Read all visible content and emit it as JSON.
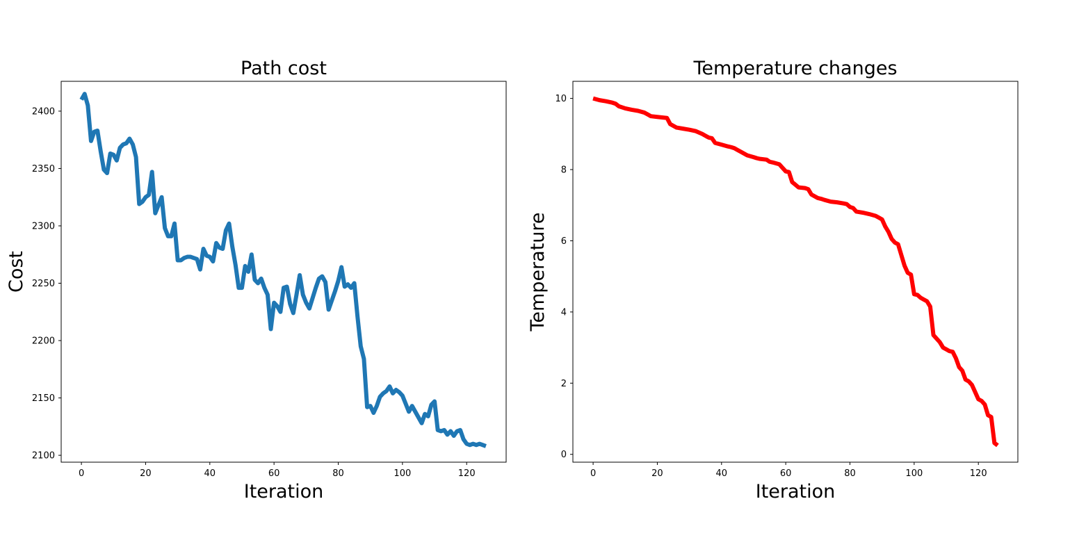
{
  "chart_data": [
    {
      "type": "line",
      "title": "Path cost",
      "xlabel": "Iteration",
      "ylabel": "Cost",
      "xlim": [
        -6.3,
        132.3
      ],
      "ylim": [
        2094,
        2426
      ],
      "xticks": [
        "0",
        "20",
        "40",
        "60",
        "80",
        "100",
        "120"
      ],
      "yticks": [
        "2100",
        "2150",
        "2200",
        "2250",
        "2300",
        "2350",
        "2400"
      ],
      "color": "#1f77b4",
      "series": [
        {
          "x": [
            0,
            1,
            2,
            3,
            4,
            5,
            6,
            7,
            8,
            9,
            10,
            11,
            12,
            13,
            14,
            15,
            16,
            17,
            18,
            19,
            20,
            21,
            22,
            23,
            24,
            25,
            26,
            27,
            28,
            29,
            30,
            31,
            32,
            33,
            34,
            35,
            36,
            37,
            38,
            39,
            40,
            41,
            42,
            43,
            44,
            45,
            46,
            47,
            48,
            49,
            50,
            51,
            52,
            53,
            54,
            55,
            56,
            57,
            58,
            59,
            60,
            61,
            62,
            63,
            64,
            65,
            66,
            67,
            68,
            69,
            70,
            71,
            72,
            73,
            74,
            75,
            76,
            77,
            78,
            79,
            80,
            81,
            82,
            83,
            84,
            85,
            86,
            87,
            88,
            89,
            90,
            91,
            92,
            93,
            94,
            95,
            96,
            97,
            98,
            99,
            100,
            101,
            102,
            103,
            104,
            105,
            106,
            107,
            108,
            109,
            110,
            111,
            112,
            113,
            114,
            115,
            116,
            117,
            118,
            119,
            120,
            121,
            122,
            123,
            124,
            125,
            126
          ],
          "y": [
            2410,
            2415,
            2405,
            2374,
            2382,
            2383,
            2365,
            2349,
            2346,
            2363,
            2362,
            2357,
            2368,
            2371,
            2372,
            2376,
            2371,
            2360,
            2319,
            2321,
            2325,
            2327,
            2347,
            2311,
            2318,
            2325,
            2298,
            2291,
            2291,
            2302,
            2270,
            2270,
            2272,
            2273,
            2273,
            2272,
            2271,
            2262,
            2280,
            2274,
            2273,
            2269,
            2285,
            2281,
            2280,
            2296,
            2302,
            2282,
            2266,
            2246,
            2246,
            2265,
            2260,
            2275,
            2253,
            2250,
            2254,
            2246,
            2240,
            2210,
            2233,
            2230,
            2225,
            2246,
            2247,
            2232,
            2224,
            2240,
            2257,
            2240,
            2233,
            2228,
            2237,
            2246,
            2254,
            2256,
            2251,
            2227,
            2235,
            2243,
            2252,
            2264,
            2247,
            2249,
            2246,
            2250,
            2221,
            2195,
            2184,
            2142,
            2143,
            2137,
            2143,
            2151,
            2154,
            2156,
            2160,
            2154,
            2157,
            2155,
            2152,
            2145,
            2138,
            2143,
            2138,
            2133,
            2128,
            2136,
            2134,
            2144,
            2147,
            2122,
            2121,
            2122,
            2118,
            2121,
            2117,
            2121,
            2122,
            2114,
            2110,
            2109,
            2110,
            2109,
            2110,
            2109,
            2108
          ]
        }
      ]
    },
    {
      "type": "line",
      "title": "Temperature changes",
      "xlabel": "Iteration",
      "ylabel": "Temperature",
      "xlim": [
        -6.3,
        132.3
      ],
      "ylim": [
        -0.22,
        10.48
      ],
      "xticks": [
        "0",
        "20",
        "40",
        "60",
        "80",
        "100",
        "120"
      ],
      "yticks": [
        "0",
        "2",
        "4",
        "6",
        "8",
        "10"
      ],
      "color": "#ff0000",
      "series": [
        {
          "x": [
            0,
            2,
            4,
            6,
            7,
            8,
            10,
            12,
            14,
            16,
            17,
            18,
            20,
            22,
            23,
            24,
            26,
            28,
            30,
            32,
            34,
            35,
            36,
            37,
            38,
            40,
            42,
            43,
            44,
            45,
            46,
            48,
            50,
            51,
            52,
            54,
            55,
            56,
            58,
            59,
            60,
            61,
            62,
            64,
            66,
            67,
            68,
            70,
            71,
            72,
            74,
            76,
            78,
            79,
            80,
            81,
            82,
            84,
            86,
            88,
            89,
            90,
            91,
            92,
            93,
            94,
            95,
            96,
            97,
            98,
            99,
            100,
            101,
            102,
            103,
            104,
            105,
            106,
            107,
            108,
            109,
            110,
            111,
            112,
            113,
            114,
            115,
            116,
            117,
            118,
            119,
            120,
            121,
            122,
            123,
            124,
            125,
            126
          ],
          "y": [
            10.0,
            9.95,
            9.92,
            9.88,
            9.85,
            9.78,
            9.72,
            9.68,
            9.65,
            9.6,
            9.55,
            9.5,
            9.48,
            9.46,
            9.45,
            9.28,
            9.18,
            9.15,
            9.12,
            9.08,
            9.0,
            8.95,
            8.9,
            8.88,
            8.75,
            8.7,
            8.65,
            8.63,
            8.6,
            8.55,
            8.5,
            8.4,
            8.35,
            8.32,
            8.3,
            8.28,
            8.22,
            8.2,
            8.15,
            8.05,
            7.95,
            7.93,
            7.65,
            7.5,
            7.48,
            7.45,
            7.3,
            7.2,
            7.18,
            7.15,
            7.1,
            7.08,
            7.05,
            7.03,
            6.95,
            6.92,
            6.82,
            6.79,
            6.75,
            6.7,
            6.65,
            6.6,
            6.4,
            6.25,
            6.05,
            5.95,
            5.9,
            5.6,
            5.3,
            5.1,
            5.05,
            4.5,
            4.48,
            4.4,
            4.35,
            4.3,
            4.15,
            3.35,
            3.25,
            3.15,
            3.0,
            2.95,
            2.9,
            2.88,
            2.7,
            2.45,
            2.35,
            2.1,
            2.05,
            1.95,
            1.75,
            1.55,
            1.5,
            1.4,
            1.1,
            1.05,
            0.32,
            0.25
          ]
        }
      ]
    }
  ]
}
